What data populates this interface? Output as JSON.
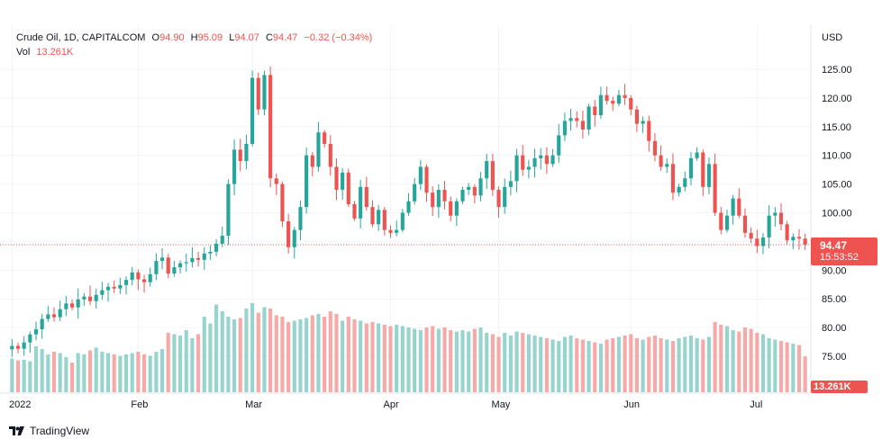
{
  "legend": {
    "symbol": "Crude Oil, 1D, CAPITALCOM",
    "o_label": "O",
    "o_value": "94.90",
    "h_label": "H",
    "h_value": "95.09",
    "l_label": "L",
    "l_value": "94.07",
    "c_label": "C",
    "c_value": "94.47",
    "change": "−0.32 (−0.34%)",
    "vol_label": "Vol",
    "vol_value": "13.261K"
  },
  "price_axis": {
    "currency": "USD"
  },
  "last_price": {
    "price": "94.47",
    "countdown": "15:53:52"
  },
  "volume_tag": "13.261K",
  "brand": {
    "name": "TradingView",
    "icon": "tradingview-logo-icon"
  },
  "colors": {
    "up": "#26a69a",
    "down": "#ef5350",
    "up_volume": "#97d4cd",
    "down_volume": "#f7a9a7",
    "grid": "#f0f3fa"
  },
  "chart_data": {
    "type": "candlestick",
    "y_ticks": [
      "75.00",
      "80.00",
      "85.00",
      "90.00",
      "95.00",
      "100.00",
      "105.00",
      "110.00",
      "115.00",
      "120.00",
      "125.00"
    ],
    "ylim": [
      70.5,
      129.5
    ],
    "x_ticks": [
      {
        "label": "2022",
        "index": 0
      },
      {
        "label": "Feb",
        "index": 21
      },
      {
        "label": "Mar",
        "index": 40
      },
      {
        "label": "Apr",
        "index": 63
      },
      {
        "label": "May",
        "index": 81
      },
      {
        "label": "Jun",
        "index": 103
      },
      {
        "label": "Jul",
        "index": 124
      }
    ],
    "grid": true,
    "close": [
      76.8,
      76.3,
      77.4,
      78.8,
      79.7,
      81.5,
      82.3,
      81.8,
      83.2,
      84.2,
      83.5,
      84.9,
      85.4,
      84.6,
      85.7,
      86.5,
      87.1,
      86.8,
      87.4,
      88.3,
      89.6,
      88.4,
      87.9,
      89.3,
      91.6,
      92.2,
      89.4,
      90.5,
      91.2,
      91.4,
      92.1,
      91.8,
      92.9,
      93.2,
      94.6,
      96.0,
      105.0,
      111.0,
      109.0,
      112.0,
      123.5,
      118.0,
      124.0,
      106.0,
      105.0,
      98.5,
      94.0,
      97.0,
      101.0,
      110.0,
      108.0,
      114.0,
      112.0,
      108.0,
      104.0,
      107.0,
      101.5,
      99.0,
      104.5,
      101.0,
      98.0,
      100.5,
      97.0,
      96.5,
      97.0,
      100.0,
      102.0,
      105.0,
      108.0,
      103.5,
      101.0,
      104.0,
      102.0,
      99.5,
      102.0,
      104.0,
      104.5,
      103.0,
      106.0,
      109.0,
      104.0,
      101.0,
      104.5,
      105.5,
      110.0,
      107.5,
      108.0,
      109.5,
      110.0,
      108.5,
      110.0,
      113.5,
      116.0,
      116.5,
      116.0,
      114.5,
      118.5,
      117.0,
      120.5,
      119.5,
      119.0,
      120.5,
      120.0,
      118.0,
      115.5,
      116.0,
      112.5,
      110.0,
      108.0,
      108.5,
      103.5,
      104.5,
      106.0,
      109.5,
      110.5,
      104.5,
      108.5,
      100.0,
      97.0,
      99.5,
      102.5,
      99.5,
      96.5,
      95.5,
      94.2,
      95.7,
      99.5,
      100.0,
      98.0,
      95.2,
      95.8,
      95.5,
      94.47
    ],
    "volume_k": [
      12.5,
      11.8,
      12.0,
      11.5,
      17.0,
      16.0,
      14.0,
      15.0,
      14.5,
      13.0,
      11.0,
      14.5,
      14.0,
      15.5,
      16.5,
      15.0,
      14.5,
      14.0,
      13.5,
      14.0,
      14.5,
      15.0,
      14.0,
      13.5,
      15.0,
      16.0,
      22.0,
      21.5,
      21.0,
      23.0,
      20.0,
      21.5,
      28.0,
      25.5,
      32.5,
      30.0,
      28.0,
      27.0,
      27.5,
      31.0,
      33.0,
      29.5,
      31.5,
      31.0,
      28.5,
      28.0,
      26.0,
      26.5,
      27.0,
      27.5,
      28.5,
      29.0,
      28.0,
      30.0,
      29.0,
      26.5,
      28.0,
      27.0,
      26.5,
      25.5,
      26.0,
      25.5,
      25.0,
      24.5,
      25.0,
      24.5,
      24.0,
      23.5,
      23.0,
      24.0,
      24.5,
      23.5,
      24.0,
      23.0,
      22.5,
      23.0,
      22.5,
      23.5,
      24.0,
      22.0,
      21.5,
      20.5,
      22.0,
      21.0,
      22.5,
      22.0,
      21.5,
      21.0,
      20.5,
      20.0,
      19.5,
      19.0,
      20.5,
      21.0,
      20.0,
      19.5,
      19.0,
      18.5,
      18.0,
      19.5,
      20.0,
      20.5,
      21.0,
      21.5,
      20.0,
      19.5,
      20.5,
      21.0,
      20.0,
      19.5,
      19.0,
      20.0,
      20.5,
      21.0,
      20.0,
      19.5,
      20.5,
      26.0,
      25.0,
      24.5,
      23.0,
      22.5,
      24.0,
      23.5,
      22.0,
      21.5,
      20.0,
      19.5,
      19.0,
      18.5,
      18.0,
      17.5,
      13.261
    ]
  }
}
